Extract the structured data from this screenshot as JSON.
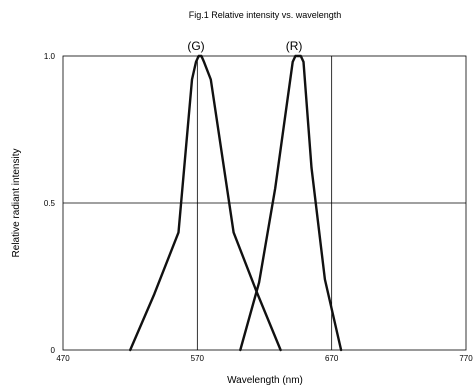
{
  "chart_data": {
    "type": "line",
    "title": "Fig.1 Relative intensity vs. wavelength",
    "xlabel": "Wavelength (nm)",
    "ylabel": "Relative radiant intensity",
    "xlim": [
      470,
      770
    ],
    "ylim": [
      0,
      1.0
    ],
    "x_ticks": [
      "470",
      "570",
      "670",
      "770"
    ],
    "y_ticks": [
      "0",
      "0.5",
      "1.0"
    ],
    "grid": {
      "vertical_at": [
        570,
        670
      ],
      "horizontal_at": [
        0.5
      ]
    },
    "series": [
      {
        "name": "(G)",
        "x": [
          520,
          538,
          556,
          566,
          569,
          571,
          573,
          575,
          580,
          597,
          614,
          632
        ],
        "y": [
          0.0,
          0.19,
          0.4,
          0.92,
          0.98,
          1.0,
          1.0,
          0.98,
          0.92,
          0.4,
          0.2,
          0.0
        ]
      },
      {
        "name": "(R)",
        "x": [
          602,
          616,
          628,
          641,
          643,
          645,
          647,
          649,
          655,
          665,
          677
        ],
        "y": [
          0.0,
          0.23,
          0.55,
          0.98,
          1.0,
          1.0,
          1.0,
          0.98,
          0.62,
          0.24,
          0.0
        ]
      }
    ]
  }
}
